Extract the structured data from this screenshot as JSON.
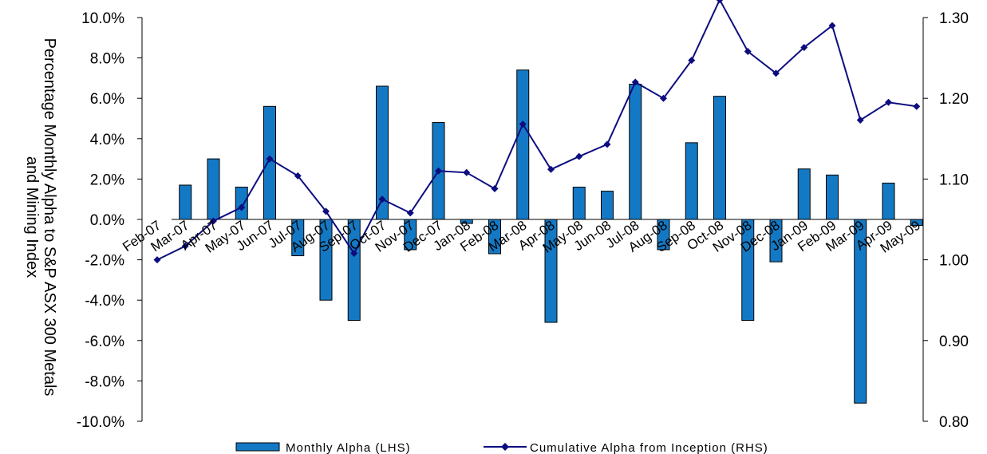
{
  "chart_data": {
    "type": "bar+line",
    "title": "",
    "ylabel_line1": "Percentage Monthly Alpha to S&P ASX 300 Metals",
    "ylabel_line2": "and Mining Index",
    "ylim_left": [
      -10,
      10
    ],
    "ylim_right": [
      0.8,
      1.3
    ],
    "y_left_ticks": [
      "10.0%",
      "8.0%",
      "6.0%",
      "4.0%",
      "2.0%",
      "0.0%",
      "-2.0%",
      "-4.0%",
      "-6.0%",
      "-8.0%",
      "-10.0%"
    ],
    "y_right_ticks": [
      "1.30",
      "1.20",
      "1.10",
      "1.00",
      "0.90",
      "0.80"
    ],
    "categories": [
      "Feb-07",
      "Mar-07",
      "Apr-07",
      "May-07",
      "Jun-07",
      "Jul-07",
      "Aug-07",
      "Sep-07",
      "Oct-07",
      "Nov-07",
      "Dec-07",
      "Jan-08",
      "Feb-08",
      "Mar-08",
      "Apr-08",
      "May-08",
      "Jun-08",
      "Jul-08",
      "Aug-08",
      "Sep-08",
      "Oct-08",
      "Nov-08",
      "Dec-08",
      "Jan-09",
      "Feb-09",
      "Mar-09",
      "Apr-09",
      "May-09"
    ],
    "series": [
      {
        "name": "Monthly Alpha (LHS)",
        "axis": "left",
        "color": "#1479c4",
        "values": [
          null,
          1.7,
          3.0,
          1.6,
          5.6,
          -1.8,
          -4.0,
          -5.0,
          6.6,
          -1.5,
          4.8,
          -0.2,
          -1.7,
          7.4,
          -5.1,
          1.6,
          1.4,
          6.7,
          -1.5,
          3.8,
          6.1,
          -5.0,
          -2.1,
          2.5,
          2.2,
          -9.1,
          1.8,
          -0.3
        ]
      },
      {
        "name": "Cumulative Alpha from Inception (RHS)",
        "axis": "right",
        "color": "#0d0d80",
        "values": [
          1.0,
          1.017,
          1.048,
          1.065,
          1.125,
          1.104,
          1.06,
          1.008,
          1.075,
          1.058,
          1.11,
          1.108,
          1.088,
          1.168,
          1.112,
          1.128,
          1.143,
          1.22,
          1.2,
          1.247,
          1.322,
          1.258,
          1.231,
          1.263,
          1.29,
          1.173,
          1.195,
          1.19
        ]
      }
    ],
    "legend_position": "bottom"
  }
}
